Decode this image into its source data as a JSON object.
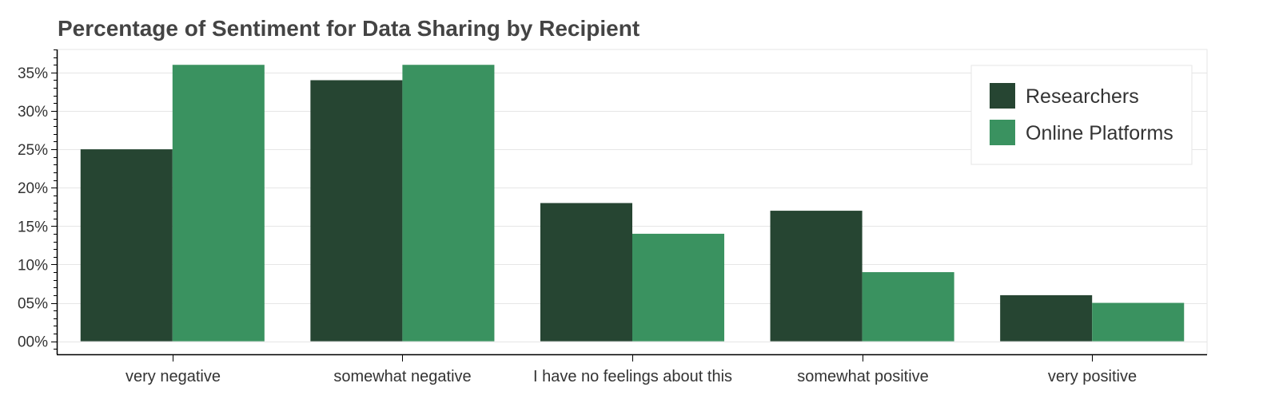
{
  "chart_data": {
    "type": "bar",
    "title": "Percentage of Sentiment for Data Sharing by Recipient",
    "xlabel": "",
    "ylabel": "",
    "categories": [
      "very negative",
      "somewhat negative",
      "I have no feelings about this",
      "somewhat positive",
      "very positive"
    ],
    "series": [
      {
        "name": "Researchers",
        "color": "#264532",
        "values": [
          25,
          34,
          18,
          17,
          6
        ]
      },
      {
        "name": "Online Platforms",
        "color": "#3a9260",
        "values": [
          36,
          36,
          14,
          9,
          5
        ]
      }
    ],
    "ylim": [
      -1.7,
      38
    ],
    "yticks": [
      0,
      5,
      10,
      15,
      20,
      25,
      30,
      35
    ],
    "ytick_labels": [
      "00%",
      "05%",
      "10%",
      "15%",
      "20%",
      "25%",
      "30%",
      "35%"
    ],
    "grid": true,
    "legend_position": "top-right"
  }
}
